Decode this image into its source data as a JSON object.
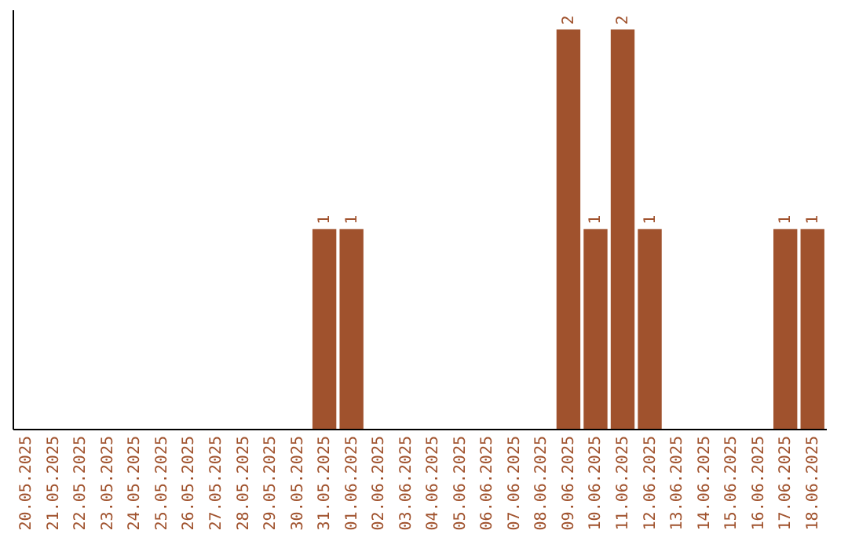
{
  "chart_data": {
    "type": "bar",
    "categories": [
      "20.05.2025",
      "21.05.2025",
      "22.05.2025",
      "23.05.2025",
      "24.05.2025",
      "25.05.2025",
      "26.05.2025",
      "27.05.2025",
      "28.05.2025",
      "29.05.2025",
      "30.05.2025",
      "31.05.2025",
      "01.06.2025",
      "02.06.2025",
      "03.06.2025",
      "04.06.2025",
      "05.06.2025",
      "06.06.2025",
      "07.06.2025",
      "08.06.2025",
      "09.06.2025",
      "10.06.2025",
      "11.06.2025",
      "12.06.2025",
      "13.06.2025",
      "14.06.2025",
      "15.06.2025",
      "16.06.2025",
      "17.06.2025",
      "18.06.2025"
    ],
    "values": [
      0,
      0,
      0,
      0,
      0,
      0,
      0,
      0,
      0,
      0,
      0,
      1,
      1,
      0,
      0,
      0,
      0,
      0,
      0,
      0,
      2,
      1,
      2,
      1,
      0,
      0,
      0,
      0,
      1,
      1
    ],
    "value_labels": [
      null,
      null,
      null,
      null,
      null,
      null,
      null,
      null,
      null,
      null,
      null,
      "1",
      "1",
      null,
      null,
      null,
      null,
      null,
      null,
      null,
      "2",
      "1",
      "2",
      "1",
      null,
      null,
      null,
      null,
      "1",
      "1"
    ],
    "color": "#a0522d",
    "ylim": [
      0,
      2.1
    ],
    "tick_labels": "x"
  }
}
